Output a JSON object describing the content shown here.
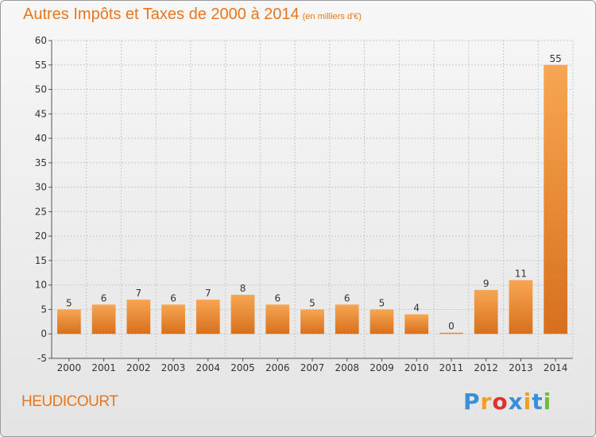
{
  "chart_data": {
    "type": "bar",
    "title": "Autres Impôts et Taxes de 2000 à 2014",
    "subtitle": "(en milliers d'€)",
    "categories": [
      "2000",
      "2001",
      "2002",
      "2003",
      "2004",
      "2005",
      "2006",
      "2007",
      "2008",
      "2009",
      "2010",
      "2011",
      "2012",
      "2013",
      "2014"
    ],
    "values": [
      5,
      6,
      7,
      6,
      7,
      8,
      6,
      5,
      6,
      5,
      4,
      0,
      9,
      11,
      55
    ],
    "ylim": [
      -5,
      60
    ],
    "yticks": [
      -5,
      0,
      5,
      10,
      15,
      20,
      25,
      30,
      35,
      40,
      45,
      50,
      55,
      60
    ],
    "xlabel": "",
    "ylabel": "",
    "grid": true,
    "bar_color_light": "#f6a04d",
    "bar_color_dark": "#d9711c"
  },
  "location": "HEUDICOURT",
  "logo": {
    "letters": [
      "P",
      "r",
      "o",
      "x",
      "i",
      "t",
      "i"
    ],
    "colors": [
      "#3a8fd6",
      "#f0a020",
      "#e03030",
      "#3a8fd6",
      "#f0a020",
      "#3a8fd6",
      "#6abe3c"
    ]
  },
  "colors": {
    "accent": "#e8761e"
  }
}
